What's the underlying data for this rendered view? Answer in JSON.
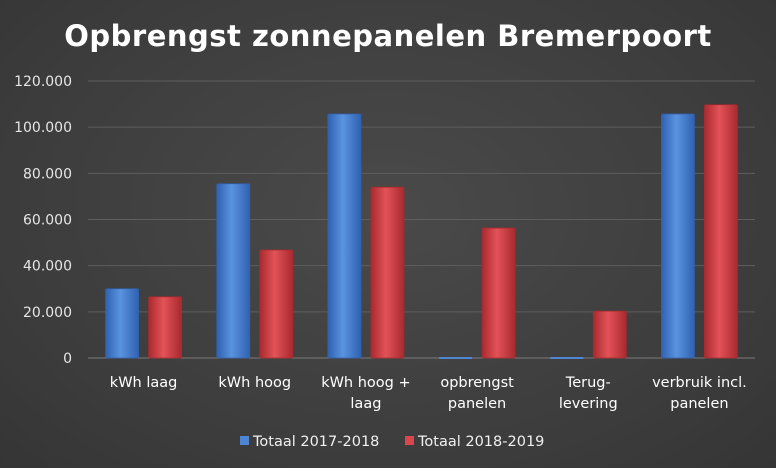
{
  "chart_data": {
    "type": "bar",
    "title": "Opbrengst zonnepanelen Bremerpoort",
    "categories": [
      [
        "kWh laag"
      ],
      [
        "kWh hoog"
      ],
      [
        "kWh hoog  +",
        "laag"
      ],
      [
        "opbrengst",
        "panelen"
      ],
      [
        "Terug-",
        "levering"
      ],
      [
        "verbruik incl.",
        "panelen"
      ]
    ],
    "series": [
      {
        "name": "Totaal 2017-2018",
        "values": [
          30000,
          75500,
          105700,
          0,
          0,
          105700
        ]
      },
      {
        "name": "Totaal 2018-2019",
        "values": [
          26500,
          46800,
          74000,
          56300,
          20300,
          109700
        ]
      }
    ],
    "ylim": [
      0,
      120000
    ],
    "y_ticks": [
      "0",
      "20.000",
      "40.000",
      "60.000",
      "80.000",
      "100.000",
      "120.000"
    ],
    "grid": true,
    "legend_position": "bottom",
    "colors": {
      "series_0": "#4f86d4",
      "series_0_dark": "#2f62b0",
      "series_1": "#d9464b",
      "series_1_dark": "#a82a2f",
      "background": "#404040"
    }
  }
}
